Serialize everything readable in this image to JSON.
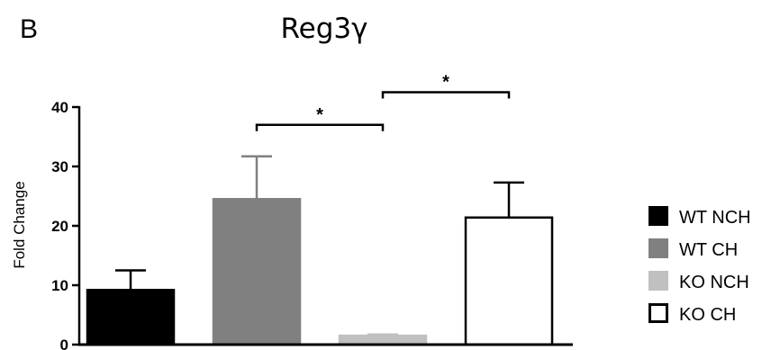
{
  "panel_letter": "B",
  "chart_data": {
    "type": "bar",
    "title": "Reg3γ",
    "ylabel": "Fold Change",
    "xlabel": "",
    "ylim": [
      0,
      40
    ],
    "yticks": [
      0,
      10,
      20,
      30,
      40
    ],
    "grid": false,
    "legend_position": "right",
    "categories": [
      "WT NCH",
      "WT CH",
      "KO NCH",
      "KO CH"
    ],
    "values": [
      9.2,
      24.5,
      1.5,
      21.4
    ],
    "errors": [
      3.3,
      7.2,
      0.2,
      5.9
    ],
    "colors": [
      "#000000",
      "#808080",
      "#c0c0c0",
      "#ffffff"
    ],
    "significance": [
      {
        "from": 1,
        "to": 2,
        "label": "*",
        "y": 37.0
      },
      {
        "from": 2,
        "to": 3,
        "label": "*",
        "y": 42.5
      }
    ]
  }
}
